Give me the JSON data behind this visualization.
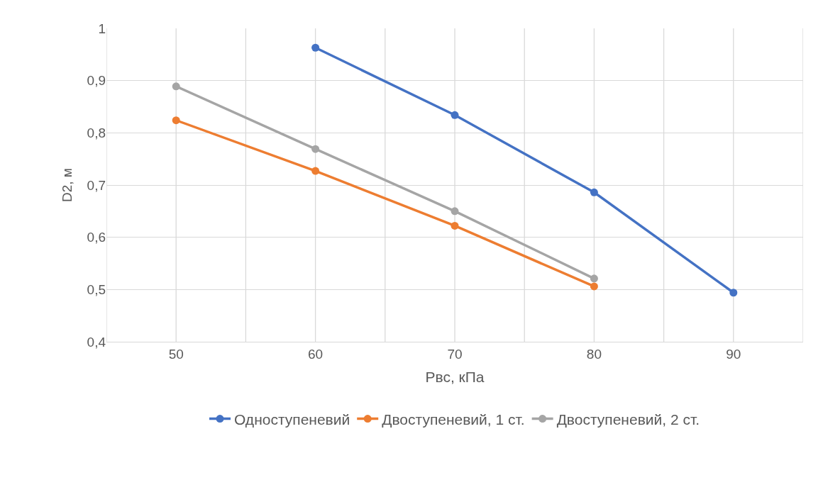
{
  "chart_data": {
    "type": "line",
    "xlabel": "Рвс, кПа",
    "ylabel": "D2, м",
    "series": [
      {
        "name": "Одноступеневий",
        "color": "#4472c4",
        "x": [
          60,
          70,
          80,
          90
        ],
        "values": [
          0.963,
          0.834,
          0.686,
          0.494
        ]
      },
      {
        "name": "Двоступеневий, 1 ст.",
        "color": "#ed7d31",
        "x": [
          50,
          60,
          70,
          80
        ],
        "values": [
          0.824,
          0.727,
          0.622,
          0.506
        ]
      },
      {
        "name": "Двоступеневий, 2 ст.",
        "color": "#a5a5a5",
        "x": [
          50,
          60,
          70,
          80
        ],
        "values": [
          0.889,
          0.769,
          0.65,
          0.521
        ]
      }
    ],
    "xlim": [
      45,
      95
    ],
    "xticks": [
      {
        "value": 45,
        "label": null
      },
      50,
      {
        "value": 55,
        "label": null
      },
      60,
      {
        "value": 65,
        "label": null
      },
      70,
      {
        "value": 75,
        "label": null
      },
      80,
      {
        "value": 85,
        "label": null
      },
      90,
      {
        "value": 95,
        "label": null
      }
    ],
    "ylim": [
      0.4,
      1.0
    ],
    "yticks": [
      {
        "value": 0.4,
        "label": "0,4"
      },
      {
        "value": 0.5,
        "label": "0,5"
      },
      {
        "value": 0.6,
        "label": "0,6"
      },
      {
        "value": 0.7,
        "label": "0,7"
      },
      {
        "value": 0.8,
        "label": "0,8"
      },
      {
        "value": 0.9,
        "label": "0,9"
      },
      {
        "value": 1.0,
        "label": "1"
      }
    ],
    "grid": true,
    "legend": "bottom",
    "marker": "circle",
    "line_style": "solid"
  }
}
